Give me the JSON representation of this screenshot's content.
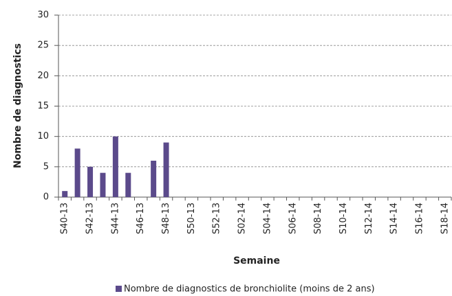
{
  "chart_data": {
    "type": "bar",
    "y_label": "Nombre de diagnostics",
    "x_label": "Semaine",
    "categories": [
      "S40-13",
      null,
      "S42-13",
      null,
      "S44-13",
      null,
      "S46-13",
      null,
      "S48-13",
      null,
      "S50-13",
      null,
      "S52-13",
      null,
      "S02-14",
      null,
      "S04-14",
      null,
      "S06-14",
      null,
      "S08-14",
      null,
      "S10-14",
      null,
      "S12-14",
      null,
      "S14-14",
      null,
      "S16-14",
      null,
      "S18-14"
    ],
    "series": [
      {
        "name": "Nombre de diagnostics de bronchiolite (moins de 2 ans)",
        "color": "#5b4a8b",
        "values": [
          1,
          8,
          5,
          4,
          10,
          4,
          0,
          6,
          9,
          null,
          null,
          null,
          null,
          null,
          null,
          null,
          null,
          null,
          null,
          null,
          null,
          null,
          null,
          null,
          null,
          null,
          null,
          null,
          null,
          null,
          null
        ]
      }
    ],
    "ylim": [
      0,
      30
    ],
    "yticks": [
      0,
      5,
      10,
      15,
      20,
      25,
      30
    ],
    "grid": true,
    "legend": "bottom"
  }
}
